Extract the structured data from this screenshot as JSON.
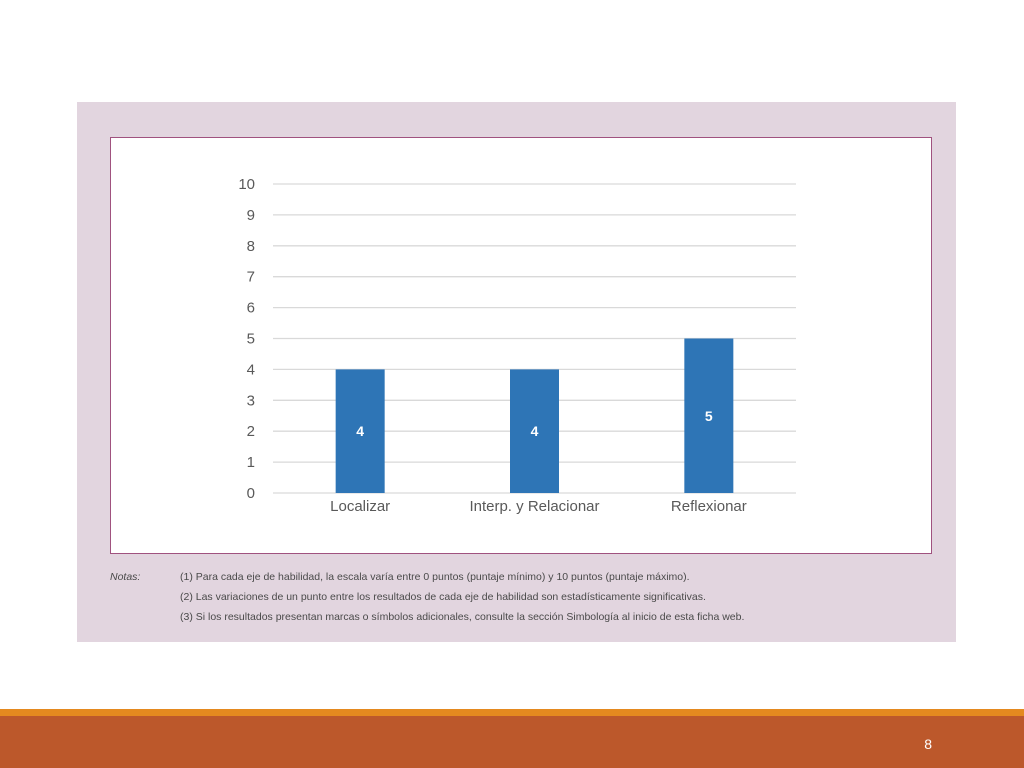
{
  "chart_data": {
    "type": "bar",
    "categories": [
      "Localizar",
      "Interp. y Relacionar",
      "Reflexionar"
    ],
    "values": [
      4,
      4,
      5
    ],
    "data_labels": [
      "4",
      "4",
      "5"
    ],
    "yticks": [
      "0",
      "1",
      "2",
      "3",
      "4",
      "5",
      "6",
      "7",
      "8",
      "9",
      "10"
    ],
    "ylim": [
      0,
      10
    ],
    "title": "",
    "xlabel": "",
    "ylabel": "",
    "grid": true,
    "bar_color": "#2e75b6"
  },
  "notes": {
    "label": "Notas:",
    "lines": [
      "(1) Para cada eje de habilidad, la escala varía entre 0 puntos (puntaje mínimo) y 10 puntos (puntaje máximo).",
      "(2) Las variaciones de un punto entre los resultados de cada eje de habilidad son estadísticamente significativas.",
      "(3) Si los resultados presentan marcas o símbolos adicionales, consulte la sección Simbología al inicio de esta ficha web."
    ]
  },
  "page_number": "8",
  "colors": {
    "panel_background": "#e2d5df",
    "chart_border": "#a0527f",
    "footer_bar": "#bc582b",
    "footer_accent": "#e4891f"
  }
}
